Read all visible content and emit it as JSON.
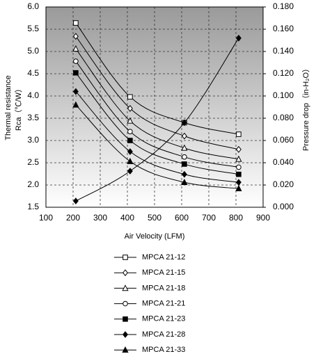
{
  "chart_data": {
    "type": "line",
    "xlabel": "Air Velocity (LFM)",
    "ylabel": [
      "Thermal resistance",
      "Rca（℃/W）"
    ],
    "y2label": "Pressure drop（in-H₂O）",
    "x": [
      210,
      410,
      610,
      810
    ],
    "xlim": [
      100,
      900
    ],
    "xticks": [
      100,
      200,
      300,
      400,
      500,
      600,
      700,
      800,
      900
    ],
    "ylim": [
      1.5,
      6.0
    ],
    "yticks": [
      1.5,
      {
        "value": 2.0,
        "label": "2.0"
      },
      2.5,
      {
        "value": 3.0,
        "label": "3.0"
      },
      3.5,
      {
        "value": 4.0,
        "label": "4.0"
      },
      4.5,
      {
        "value": 5.0,
        "label": "5.0"
      },
      5.5,
      {
        "value": 6.0,
        "label": "6.0"
      }
    ],
    "y2lim": [
      0,
      0.18
    ],
    "y2ticks": [
      {
        "value": 0,
        "label": "0.000"
      },
      {
        "value": 0.02,
        "label": "0.020"
      },
      {
        "value": 0.04,
        "label": "0.040"
      },
      {
        "value": 0.06,
        "label": "0.060"
      },
      {
        "value": 0.08,
        "label": "0.080"
      },
      {
        "value": 0.1,
        "label": "0.100"
      },
      {
        "value": 0.12,
        "label": "0.120"
      },
      {
        "value": 0.14,
        "label": "0.140"
      },
      {
        "value": 0.16,
        "label": "0.160"
      },
      {
        "value": 0.18,
        "label": "0.180"
      }
    ],
    "grid": true,
    "series": [
      {
        "name": "MPCA 21-12",
        "color": "#000000",
        "marker": "square-open",
        "values": [
          5.64,
          3.98,
          3.4,
          3.14
        ]
      },
      {
        "name": "MPCA 21-15",
        "color": "#000000",
        "marker": "diamond-open",
        "values": [
          5.34,
          3.72,
          3.1,
          2.8
        ]
      },
      {
        "name": "MPCA 21-18",
        "color": "#000000",
        "marker": "triangle-open",
        "values": [
          5.06,
          3.44,
          2.83,
          2.58
        ]
      },
      {
        "name": "MPCA 21-21",
        "color": "#000000",
        "marker": "circle-open",
        "values": [
          4.78,
          3.2,
          2.63,
          2.4
        ]
      },
      {
        "name": "MPCA 21-23",
        "color": "#000000",
        "marker": "square",
        "values": [
          4.52,
          3.0,
          2.47,
          2.24
        ]
      },
      {
        "name": "MPCA 21-28",
        "color": "#000000",
        "marker": "diamond",
        "values": [
          4.1,
          2.75,
          2.24,
          2.06
        ]
      },
      {
        "name": "MPCA 21-33",
        "color": "#000000",
        "marker": "triangle",
        "values": [
          3.8,
          2.53,
          2.06,
          1.92
        ]
      },
      {
        "color": "#000000",
        "marker": "diamond",
        "axis": "y2",
        "values": [
          0.0056,
          0.0325,
          0.076,
          0.152
        ]
      }
    ]
  }
}
